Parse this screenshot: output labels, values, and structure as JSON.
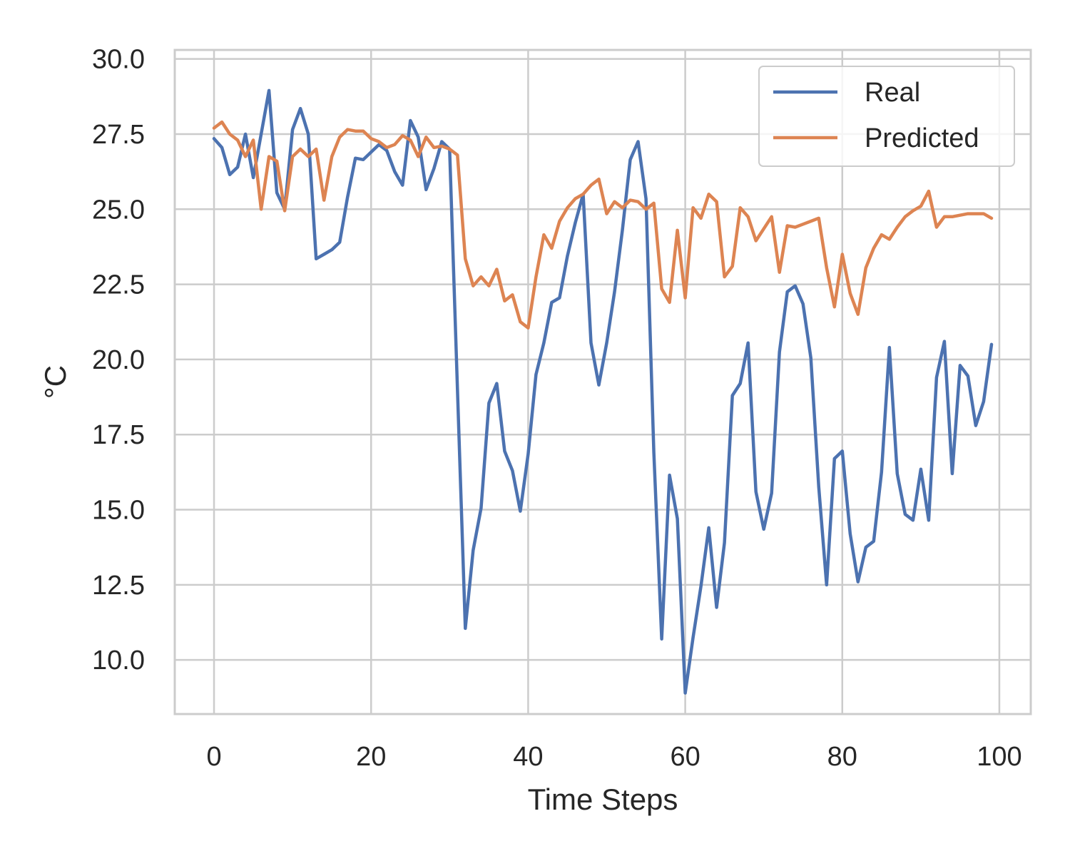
{
  "chart_data": {
    "type": "line",
    "title": "",
    "xlabel": "Time Steps",
    "ylabel": "°C",
    "xlim": [
      -5,
      104
    ],
    "ylim": [
      8.2,
      30.3
    ],
    "x_ticks": [
      0,
      20,
      40,
      60,
      80,
      100
    ],
    "y_ticks": [
      10.0,
      12.5,
      15.0,
      17.5,
      20.0,
      22.5,
      25.0,
      27.5,
      30.0
    ],
    "x_tick_labels": [
      "0",
      "20",
      "40",
      "60",
      "80",
      "100"
    ],
    "y_tick_labels": [
      "10.0",
      "12.5",
      "15.0",
      "17.5",
      "20.0",
      "22.5",
      "25.0",
      "27.5",
      "30.0"
    ],
    "grid": true,
    "legend_position": "top-right",
    "x": [
      0,
      1,
      2,
      3,
      4,
      5,
      6,
      7,
      8,
      9,
      10,
      11,
      12,
      13,
      14,
      15,
      16,
      17,
      18,
      19,
      20,
      21,
      22,
      23,
      24,
      25,
      26,
      27,
      28,
      29,
      30,
      31,
      32,
      33,
      34,
      35,
      36,
      37,
      38,
      39,
      40,
      41,
      42,
      43,
      44,
      45,
      46,
      47,
      48,
      49,
      50,
      51,
      52,
      53,
      54,
      55,
      56,
      57,
      58,
      59,
      60,
      61,
      62,
      63,
      64,
      65,
      66,
      67,
      68,
      69,
      70,
      71,
      72,
      73,
      74,
      75,
      76,
      77,
      78,
      79,
      80,
      81,
      82,
      83,
      84,
      85,
      86,
      87,
      88,
      89,
      90,
      91,
      92,
      93,
      94,
      95,
      96,
      97,
      98,
      99
    ],
    "series": [
      {
        "name": "Real",
        "color": "#4c72b0",
        "values": [
          27.35,
          27.05,
          26.15,
          26.4,
          27.5,
          26.05,
          27.5,
          28.95,
          25.55,
          25.0,
          27.65,
          28.35,
          27.5,
          23.35,
          23.5,
          23.65,
          23.9,
          25.4,
          26.7,
          26.65,
          26.9,
          27.15,
          26.95,
          26.25,
          25.8,
          27.95,
          27.4,
          25.65,
          26.35,
          27.25,
          27.0,
          19.0,
          11.05,
          13.65,
          15.05,
          18.55,
          19.2,
          16.95,
          16.3,
          14.95,
          16.85,
          19.5,
          20.55,
          21.9,
          22.05,
          23.45,
          24.55,
          25.5,
          20.55,
          19.15,
          20.55,
          22.25,
          24.3,
          26.65,
          27.25,
          25.35,
          16.9,
          10.7,
          16.15,
          14.7,
          8.9,
          10.75,
          12.45,
          14.4,
          11.75,
          13.9,
          18.8,
          19.2,
          20.55,
          15.6,
          14.35,
          15.55,
          20.25,
          22.25,
          22.45,
          21.85,
          20.05,
          15.75,
          12.5,
          16.7,
          16.95,
          14.2,
          12.6,
          13.75,
          13.95,
          16.25,
          20.4,
          16.2,
          14.85,
          14.65,
          16.35,
          14.65,
          19.4,
          20.6,
          16.2,
          19.8,
          19.45,
          17.8,
          18.6,
          20.5
        ]
      },
      {
        "name": "Predicted",
        "color": "#dd8452",
        "values": [
          27.7,
          27.9,
          27.5,
          27.3,
          26.75,
          27.3,
          25.0,
          26.75,
          26.6,
          24.95,
          26.75,
          27.0,
          26.75,
          27.0,
          25.3,
          26.75,
          27.4,
          27.65,
          27.6,
          27.6,
          27.35,
          27.25,
          27.05,
          27.15,
          27.45,
          27.3,
          26.75,
          27.4,
          27.05,
          27.1,
          27.0,
          26.8,
          23.35,
          22.45,
          22.75,
          22.45,
          23.0,
          21.95,
          22.15,
          21.25,
          21.05,
          22.75,
          24.15,
          23.7,
          24.6,
          25.05,
          25.35,
          25.5,
          25.8,
          26.0,
          24.85,
          25.25,
          25.05,
          25.3,
          25.25,
          25.0,
          25.2,
          22.35,
          21.9,
          24.3,
          22.05,
          25.05,
          24.7,
          25.5,
          25.25,
          22.75,
          23.1,
          25.05,
          24.75,
          23.95,
          24.35,
          24.75,
          22.9,
          24.45,
          24.4,
          24.5,
          24.6,
          24.7,
          23.05,
          21.75,
          23.5,
          22.2,
          21.5,
          23.05,
          23.7,
          24.15,
          24.0,
          24.4,
          24.75,
          24.95,
          25.1,
          25.6,
          24.4,
          24.75,
          24.75,
          24.8,
          24.85,
          24.85,
          24.85,
          24.7
        ]
      }
    ]
  }
}
